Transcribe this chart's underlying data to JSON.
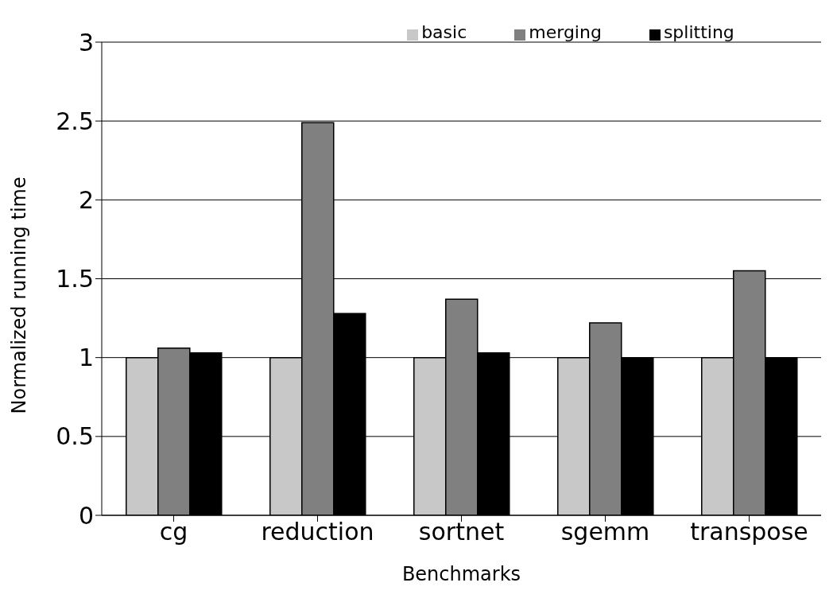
{
  "chart_data": {
    "type": "bar",
    "xlabel": "Benchmarks",
    "ylabel": "Normalized running time",
    "categories": [
      "cg",
      "reduction",
      "sortnet",
      "sgemm",
      "transpose"
    ],
    "series": [
      {
        "name": "basic",
        "color": "#c8c8c8",
        "values": [
          1,
          1,
          1,
          1,
          1
        ]
      },
      {
        "name": "merging",
        "color": "#808080",
        "values": [
          1.06,
          2.49,
          1.37,
          1.22,
          1.55
        ]
      },
      {
        "name": "splitting",
        "color": "#000000",
        "values": [
          1.03,
          1.28,
          1.03,
          1,
          1
        ]
      }
    ],
    "ylim": [
      0,
      3
    ],
    "yticks": [
      0,
      0.5,
      1,
      1.5,
      2,
      2.5,
      3
    ],
    "grid": "y",
    "legend": "top"
  }
}
